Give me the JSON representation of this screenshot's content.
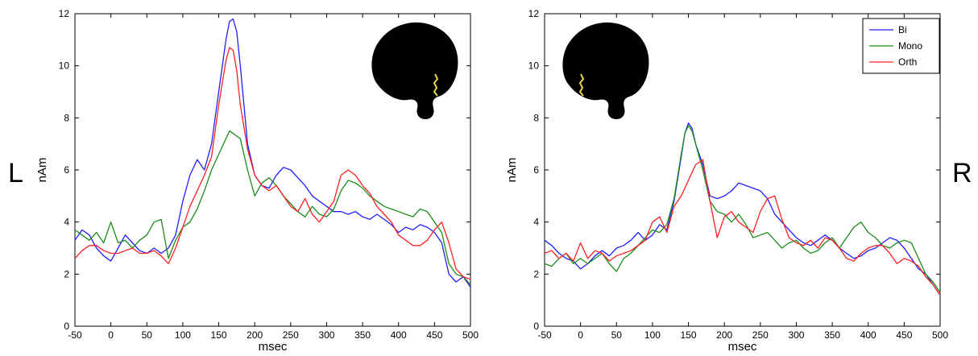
{
  "side_labels": {
    "left": "L",
    "right": "R"
  },
  "colors": {
    "Bi": "#1f1fff",
    "Mono": "#1a8c1a",
    "Orth": "#ff2020"
  },
  "chart_data": [
    {
      "type": "line",
      "side": "L",
      "xlabel": "msec",
      "ylabel": "nAm",
      "xlim": [
        -50,
        500
      ],
      "ylim": [
        0,
        12
      ],
      "xticks": [
        -50,
        0,
        50,
        100,
        150,
        200,
        250,
        300,
        350,
        400,
        450,
        500
      ],
      "yticks": [
        0,
        2,
        4,
        6,
        8,
        10,
        12
      ],
      "inset": "brain-silhouette-left",
      "series": [
        {
          "name": "Bi",
          "color": "#1f1fff",
          "x": [
            -50,
            -40,
            -30,
            -20,
            -10,
            0,
            10,
            20,
            30,
            40,
            50,
            60,
            70,
            80,
            90,
            100,
            110,
            120,
            130,
            140,
            150,
            160,
            165,
            170,
            175,
            180,
            190,
            200,
            210,
            220,
            230,
            240,
            250,
            260,
            270,
            280,
            290,
            300,
            310,
            320,
            330,
            340,
            350,
            360,
            370,
            380,
            390,
            400,
            410,
            420,
            430,
            440,
            450,
            460,
            470,
            480,
            490,
            500
          ],
          "y": [
            3.3,
            3.7,
            3.5,
            3.0,
            2.7,
            2.5,
            3.0,
            3.5,
            3.2,
            2.9,
            2.8,
            3.0,
            2.8,
            3.0,
            3.5,
            4.8,
            5.8,
            6.4,
            6.0,
            7.0,
            9.0,
            11.0,
            11.7,
            11.8,
            11.3,
            10.0,
            7.0,
            5.8,
            5.4,
            5.3,
            5.8,
            6.1,
            6.0,
            5.7,
            5.4,
            5.0,
            4.8,
            4.6,
            4.4,
            4.4,
            4.3,
            4.4,
            4.2,
            4.1,
            4.3,
            4.1,
            3.9,
            3.6,
            3.8,
            3.7,
            3.9,
            3.8,
            3.6,
            3.2,
            2.0,
            1.7,
            1.9,
            1.5
          ]
        },
        {
          "name": "Mono",
          "color": "#1a8c1a",
          "x": [
            -50,
            -40,
            -30,
            -20,
            -10,
            0,
            10,
            20,
            30,
            40,
            50,
            60,
            70,
            80,
            90,
            100,
            110,
            120,
            130,
            140,
            150,
            160,
            165,
            170,
            175,
            180,
            190,
            200,
            210,
            220,
            230,
            240,
            250,
            260,
            270,
            280,
            290,
            300,
            310,
            320,
            330,
            340,
            350,
            360,
            370,
            380,
            390,
            400,
            410,
            420,
            430,
            440,
            450,
            460,
            470,
            480,
            490,
            500
          ],
          "y": [
            3.7,
            3.5,
            3.3,
            3.6,
            3.2,
            4.0,
            3.2,
            3.3,
            3.0,
            3.3,
            3.5,
            4.0,
            4.1,
            2.6,
            3.3,
            3.8,
            4.0,
            4.5,
            5.2,
            6.0,
            6.6,
            7.2,
            7.5,
            7.4,
            7.3,
            7.2,
            6.0,
            5.0,
            5.5,
            5.7,
            5.4,
            5.0,
            4.7,
            4.4,
            4.2,
            4.6,
            4.3,
            4.2,
            4.5,
            5.2,
            5.6,
            5.5,
            5.3,
            5.0,
            4.8,
            4.6,
            4.5,
            4.4,
            4.3,
            4.2,
            4.5,
            4.4,
            4.0,
            3.6,
            2.4,
            2.0,
            1.9,
            1.6
          ]
        },
        {
          "name": "Orth",
          "color": "#ff2020",
          "x": [
            -50,
            -40,
            -30,
            -20,
            -10,
            0,
            10,
            20,
            30,
            40,
            50,
            60,
            70,
            80,
            90,
            100,
            110,
            120,
            130,
            140,
            150,
            160,
            165,
            170,
            175,
            180,
            190,
            200,
            210,
            220,
            230,
            240,
            250,
            260,
            270,
            280,
            290,
            300,
            310,
            320,
            330,
            340,
            350,
            360,
            370,
            380,
            390,
            400,
            410,
            420,
            430,
            440,
            450,
            460,
            470,
            480,
            490,
            500
          ],
          "y": [
            2.6,
            2.9,
            3.1,
            3.1,
            2.9,
            2.8,
            2.8,
            2.9,
            3.0,
            2.8,
            2.8,
            2.9,
            2.7,
            2.4,
            3.0,
            3.8,
            4.6,
            5.2,
            5.8,
            6.5,
            8.5,
            10.2,
            10.7,
            10.6,
            9.8,
            8.5,
            6.8,
            5.8,
            5.4,
            5.2,
            5.4,
            5.0,
            4.6,
            4.4,
            4.9,
            4.3,
            4.0,
            4.4,
            4.8,
            5.8,
            6.0,
            5.8,
            5.4,
            5.1,
            4.6,
            4.3,
            4.0,
            3.5,
            3.3,
            3.1,
            3.1,
            3.3,
            3.7,
            4.0,
            3.2,
            2.2,
            1.9,
            1.8
          ]
        }
      ]
    },
    {
      "type": "line",
      "side": "R",
      "xlabel": "msec",
      "ylabel": "nAm",
      "xlim": [
        -50,
        500
      ],
      "ylim": [
        0,
        12
      ],
      "xticks": [
        -50,
        0,
        50,
        100,
        150,
        200,
        250,
        300,
        350,
        400,
        450,
        500
      ],
      "yticks": [
        0,
        2,
        4,
        6,
        8,
        10,
        12
      ],
      "legend": {
        "placement": "top-right",
        "entries": [
          "Bi",
          "Mono",
          "Orth"
        ]
      },
      "inset": "brain-silhouette-right",
      "series": [
        {
          "name": "Bi",
          "color": "#1f1fff",
          "x": [
            -50,
            -40,
            -30,
            -20,
            -10,
            0,
            10,
            20,
            30,
            40,
            50,
            60,
            70,
            80,
            90,
            100,
            110,
            120,
            130,
            140,
            145,
            150,
            155,
            160,
            170,
            180,
            190,
            200,
            210,
            220,
            230,
            240,
            250,
            260,
            270,
            280,
            290,
            300,
            310,
            320,
            330,
            340,
            350,
            360,
            370,
            380,
            390,
            400,
            410,
            420,
            430,
            440,
            450,
            460,
            470,
            480,
            490,
            500
          ],
          "y": [
            3.3,
            3.1,
            2.8,
            2.6,
            2.5,
            2.2,
            2.4,
            2.7,
            2.9,
            2.7,
            3.0,
            3.1,
            3.3,
            3.6,
            3.3,
            3.5,
            3.9,
            3.7,
            4.8,
            6.5,
            7.4,
            7.8,
            7.6,
            7.0,
            6.2,
            5.0,
            4.9,
            5.0,
            5.2,
            5.5,
            5.4,
            5.3,
            5.2,
            4.9,
            4.3,
            4.0,
            3.7,
            3.4,
            3.2,
            3.1,
            3.3,
            3.5,
            3.3,
            3.0,
            2.8,
            2.6,
            2.7,
            2.9,
            3.0,
            3.2,
            3.4,
            3.3,
            3.0,
            2.6,
            2.2,
            2.0,
            1.6,
            1.2
          ]
        },
        {
          "name": "Mono",
          "color": "#1a8c1a",
          "x": [
            -50,
            -40,
            -30,
            -20,
            -10,
            0,
            10,
            20,
            30,
            40,
            50,
            60,
            70,
            80,
            90,
            100,
            110,
            120,
            130,
            140,
            145,
            150,
            155,
            160,
            170,
            180,
            190,
            200,
            210,
            220,
            230,
            240,
            250,
            260,
            270,
            280,
            290,
            300,
            310,
            320,
            330,
            340,
            350,
            360,
            370,
            380,
            390,
            400,
            410,
            420,
            430,
            440,
            450,
            460,
            470,
            480,
            490,
            500
          ],
          "y": [
            2.4,
            2.3,
            2.6,
            2.8,
            2.4,
            2.6,
            2.4,
            2.6,
            2.8,
            2.4,
            2.1,
            2.6,
            2.8,
            3.1,
            3.4,
            3.7,
            3.6,
            3.9,
            4.9,
            6.6,
            7.4,
            7.7,
            7.5,
            7.0,
            6.0,
            4.8,
            4.4,
            4.3,
            4.0,
            4.3,
            3.9,
            3.4,
            3.5,
            3.6,
            3.3,
            3.0,
            3.2,
            3.3,
            3.0,
            2.8,
            2.9,
            3.2,
            3.4,
            3.0,
            3.4,
            3.8,
            4.0,
            3.6,
            3.4,
            3.1,
            3.0,
            3.2,
            3.3,
            3.2,
            2.6,
            2.0,
            1.7,
            1.3
          ]
        },
        {
          "name": "Orth",
          "color": "#ff2020",
          "x": [
            -50,
            -40,
            -30,
            -20,
            -10,
            0,
            10,
            20,
            30,
            40,
            50,
            60,
            70,
            80,
            90,
            100,
            110,
            120,
            130,
            140,
            145,
            150,
            155,
            160,
            170,
            180,
            190,
            200,
            210,
            220,
            230,
            240,
            250,
            260,
            270,
            280,
            290,
            300,
            310,
            320,
            330,
            340,
            350,
            360,
            370,
            380,
            390,
            400,
            410,
            420,
            430,
            440,
            450,
            460,
            470,
            480,
            490,
            500
          ],
          "y": [
            2.8,
            2.9,
            2.6,
            2.8,
            2.5,
            3.2,
            2.6,
            2.9,
            2.8,
            2.5,
            2.7,
            2.8,
            2.9,
            3.1,
            3.3,
            4.0,
            4.2,
            3.6,
            4.6,
            5.0,
            5.3,
            5.6,
            5.9,
            6.2,
            6.4,
            4.8,
            3.4,
            4.2,
            4.4,
            4.0,
            3.8,
            3.6,
            4.4,
            4.9,
            5.0,
            4.1,
            3.4,
            3.2,
            3.1,
            3.3,
            3.0,
            3.4,
            3.3,
            3.0,
            2.6,
            2.5,
            2.8,
            3.0,
            3.1,
            3.1,
            2.8,
            2.4,
            2.6,
            2.5,
            2.3,
            1.9,
            1.6,
            1.2
          ]
        }
      ]
    }
  ]
}
